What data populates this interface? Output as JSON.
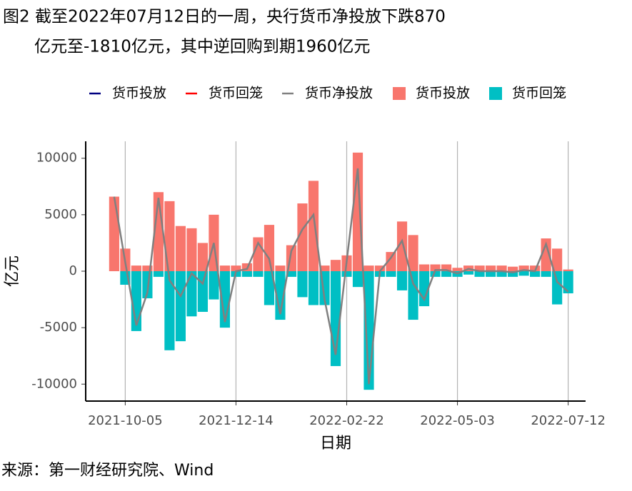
{
  "chart_data": {
    "type": "bar_line",
    "title": "图2 截至2022年07月12日的一周，央行货币净投放下跌870",
    "subtitle": "亿元至-1810亿元，其中逆回购到期1960亿元",
    "x_label": "日期",
    "y_label": "亿元",
    "source": "来源：第一财经研究院、Wind",
    "x": [
      "2021-09-28",
      "2021-10-05",
      "2021-10-12",
      "2021-10-19",
      "2021-10-26",
      "2021-11-02",
      "2021-11-09",
      "2021-11-16",
      "2021-11-23",
      "2021-11-30",
      "2021-12-07",
      "2021-12-14",
      "2021-12-21",
      "2021-12-28",
      "2022-01-04",
      "2022-01-11",
      "2022-01-18",
      "2022-01-25",
      "2022-02-01",
      "2022-02-08",
      "2022-02-15",
      "2022-02-22",
      "2022-03-01",
      "2022-03-08",
      "2022-03-15",
      "2022-03-22",
      "2022-03-29",
      "2022-04-05",
      "2022-04-12",
      "2022-04-19",
      "2022-04-26",
      "2022-05-03",
      "2022-05-10",
      "2022-05-17",
      "2022-05-24",
      "2022-05-31",
      "2022-06-07",
      "2022-06-14",
      "2022-06-21",
      "2022-06-28",
      "2022-07-05",
      "2022-07-12"
    ],
    "series": [
      {
        "name": "货币投放",
        "kind": "bar",
        "color": "#F8766D",
        "values": [
          6600,
          2000,
          500,
          500,
          7000,
          6200,
          4000,
          3800,
          2500,
          5000,
          500,
          500,
          700,
          3000,
          4100,
          500,
          2300,
          6000,
          8000,
          500,
          1000,
          1400,
          10500,
          500,
          500,
          1700,
          4400,
          3200,
          600,
          600,
          600,
          300,
          500,
          500,
          500,
          500,
          400,
          500,
          500,
          2900,
          2000,
          150
        ]
      },
      {
        "name": "货币回笼",
        "kind": "bar",
        "color": "#00BFC4",
        "values": [
          0,
          -1200,
          -5300,
          -2400,
          -500,
          -7000,
          -6200,
          -4000,
          -3600,
          -2500,
          -5000,
          -500,
          -500,
          -500,
          -3000,
          -4300,
          -500,
          -2300,
          -3000,
          -3000,
          -8400,
          -500,
          -1400,
          -10500,
          -500,
          -500,
          -1700,
          -4300,
          -3100,
          -500,
          -500,
          -500,
          -300,
          -500,
          -500,
          -500,
          -500,
          -400,
          -500,
          -500,
          -2940,
          -1960
        ]
      },
      {
        "name": "货币净投放",
        "kind": "line",
        "color": "#808080",
        "values": [
          6600,
          800,
          -4800,
          -1900,
          6500,
          -800,
          -2200,
          -200,
          -1100,
          2500,
          -4500,
          0,
          200,
          2500,
          1100,
          -3800,
          1800,
          3700,
          5000,
          -2500,
          -7400,
          900,
          9100,
          -10000,
          0,
          1200,
          2700,
          -1100,
          -2500,
          100,
          100,
          -200,
          200,
          0,
          0,
          0,
          -100,
          100,
          0,
          2400,
          -940,
          -1810
        ]
      }
    ],
    "line_keys": [
      {
        "name": "货币投放",
        "color": "#000080"
      },
      {
        "name": "货币回笼",
        "color": "#FF0000"
      }
    ],
    "xlim": [
      "2021-09-10",
      "2022-07-23"
    ],
    "xticks": [
      "2021-10-05",
      "2021-12-14",
      "2022-02-22",
      "2022-05-03",
      "2022-07-12"
    ],
    "ylim": [
      -11500,
      11500
    ],
    "yticks": [
      -10000,
      -5000,
      0,
      5000,
      10000
    ],
    "grid": "x"
  }
}
